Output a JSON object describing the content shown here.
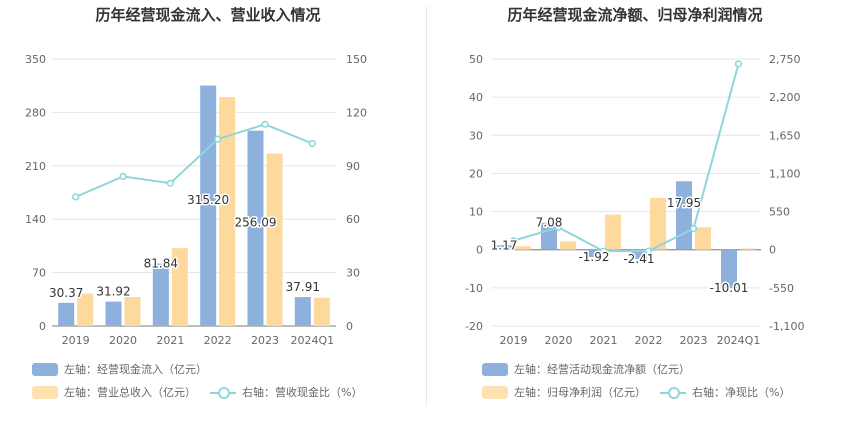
{
  "chart_data": [
    {
      "type": "bar",
      "title": "历年经营现金流入、营业收入情况",
      "categories": [
        "2019",
        "2020",
        "2021",
        "2022",
        "2023",
        "2024Q1"
      ],
      "left_axis": {
        "ticks": [
          0,
          70,
          140,
          210,
          280,
          350
        ],
        "labels": [
          "0",
          "70",
          "140",
          "210",
          "280",
          "350"
        ],
        "ylim": [
          0,
          350
        ]
      },
      "right_axis": {
        "ticks": [
          0,
          30,
          60,
          90,
          120,
          150
        ],
        "labels": [
          "0",
          "30",
          "60",
          "90",
          "120",
          "150"
        ],
        "ylim": [
          0,
          150
        ]
      },
      "series": [
        {
          "name": "左轴：经营现金流入（亿元）",
          "kind": "bar",
          "axis": "left",
          "color": "#8eb0dd",
          "values": [
            30.37,
            31.92,
            81.84,
            315.2,
            256.09,
            37.91
          ],
          "labels": [
            "30.37",
            "31.92",
            "81.84",
            "315.20",
            "256.09",
            "37.91"
          ]
        },
        {
          "name": "左轴：营业总收入（亿元）",
          "kind": "bar",
          "axis": "left",
          "color": "#fdd99c",
          "values": [
            42.5,
            38.0,
            102.0,
            300.0,
            226.0,
            37.0
          ]
        },
        {
          "name": "右轴：营收现金比（%）",
          "kind": "line",
          "axis": "right",
          "color": "#8fd6dc",
          "values": [
            72.5,
            84.0,
            80.2,
            105.0,
            113.3,
            102.5
          ]
        }
      ]
    },
    {
      "type": "bar",
      "title": "历年经营现金流净额、归母净利润情况",
      "categories": [
        "2019",
        "2020",
        "2021",
        "2022",
        "2023",
        "2024Q1"
      ],
      "left_axis": {
        "ticks": [
          -20,
          -10,
          0,
          10,
          20,
          30,
          40,
          50
        ],
        "labels": [
          "-20",
          "-10",
          "0",
          "10",
          "20",
          "30",
          "40",
          "50"
        ],
        "ylim": [
          -20,
          50
        ]
      },
      "right_axis": {
        "ticks": [
          -1100,
          -550,
          0,
          550,
          1100,
          1650,
          2200,
          2750
        ],
        "labels": [
          "-1,100",
          "-550",
          "0",
          "550",
          "1,100",
          "1,650",
          "2,200",
          "2,750"
        ],
        "ylim": [
          -1100,
          2750
        ]
      },
      "series": [
        {
          "name": "左轴：经营活动现金流净额（亿元）",
          "kind": "bar",
          "axis": "left",
          "color": "#8eb0dd",
          "values": [
            1.17,
            7.08,
            -1.92,
            -2.41,
            17.95,
            -10.01
          ],
          "labels": [
            "1.17",
            "7.08",
            "-1.92",
            "-2.41",
            "17.95",
            "-10.01"
          ]
        },
        {
          "name": "左轴：归母净利润（亿元）",
          "kind": "bar",
          "axis": "left",
          "color": "#fdd99c",
          "values": [
            0.9,
            2.2,
            9.2,
            13.6,
            5.9,
            0.3
          ]
        },
        {
          "name": "右轴：净现比（%）",
          "kind": "line",
          "axis": "right",
          "color": "#8fd6dc",
          "values": [
            130,
            322,
            -21,
            -18,
            304,
            2680
          ]
        }
      ]
    }
  ]
}
